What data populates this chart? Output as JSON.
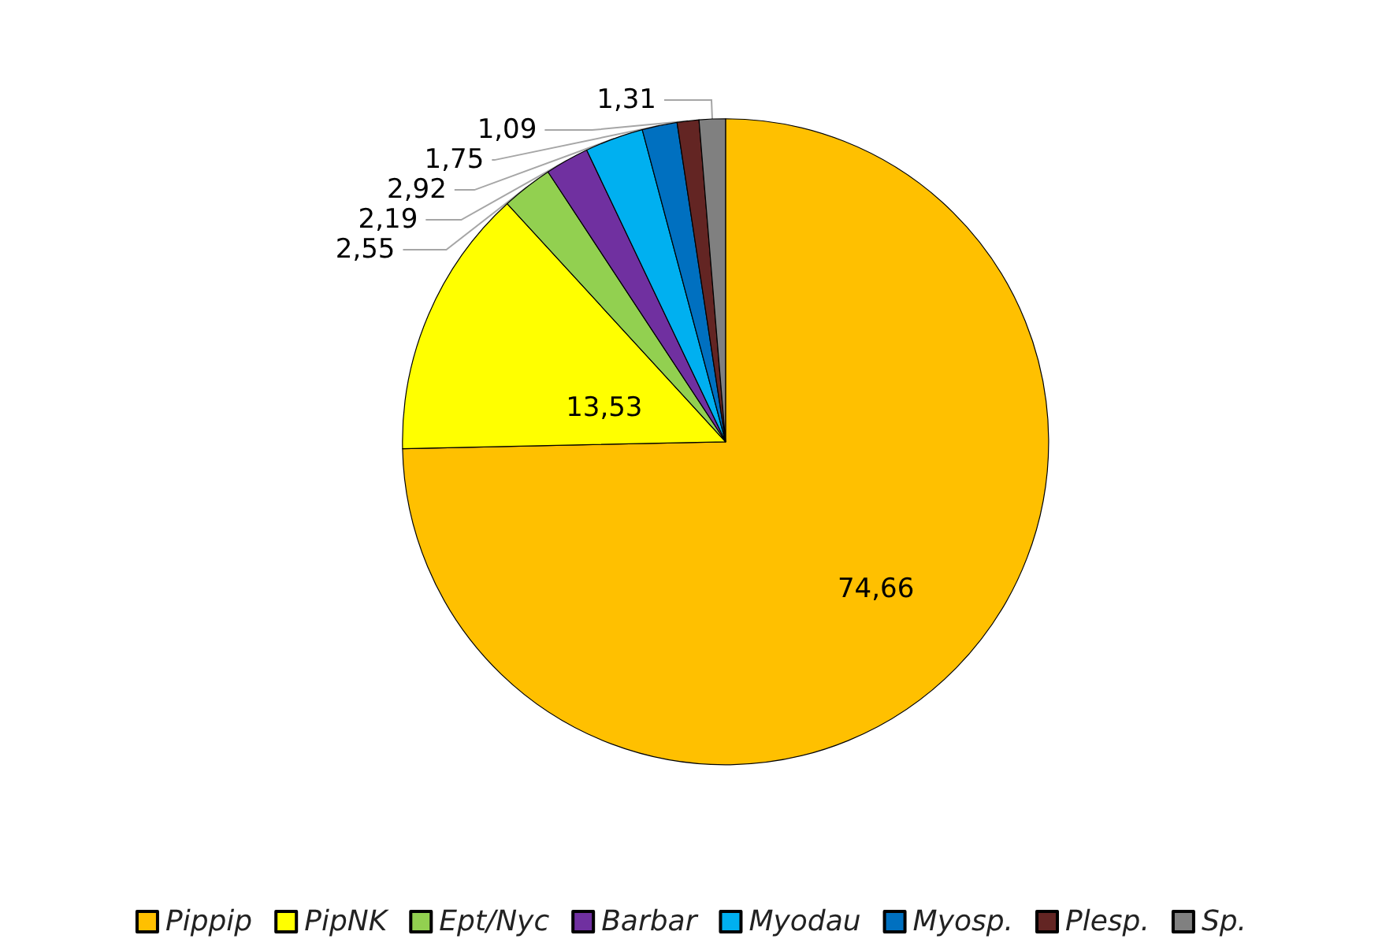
{
  "chart_data": {
    "type": "pie",
    "categories": [
      "Pippip",
      "PipNK",
      "Ept/Nyc",
      "Barbar",
      "Myodau",
      "Myosp.",
      "Plesp.",
      "Sp."
    ],
    "values": [
      74.66,
      13.53,
      2.55,
      2.19,
      2.92,
      1.75,
      1.09,
      1.31
    ],
    "value_labels": [
      "74,66",
      "13,53",
      "2,55",
      "2,19",
      "2,92",
      "1,75",
      "1,09",
      "1,31"
    ],
    "colors": [
      "#ffc000",
      "#ffff00",
      "#92d050",
      "#7030a0",
      "#00b0f0",
      "#0070c0",
      "#632523",
      "#808080"
    ],
    "legend": "bottom"
  }
}
